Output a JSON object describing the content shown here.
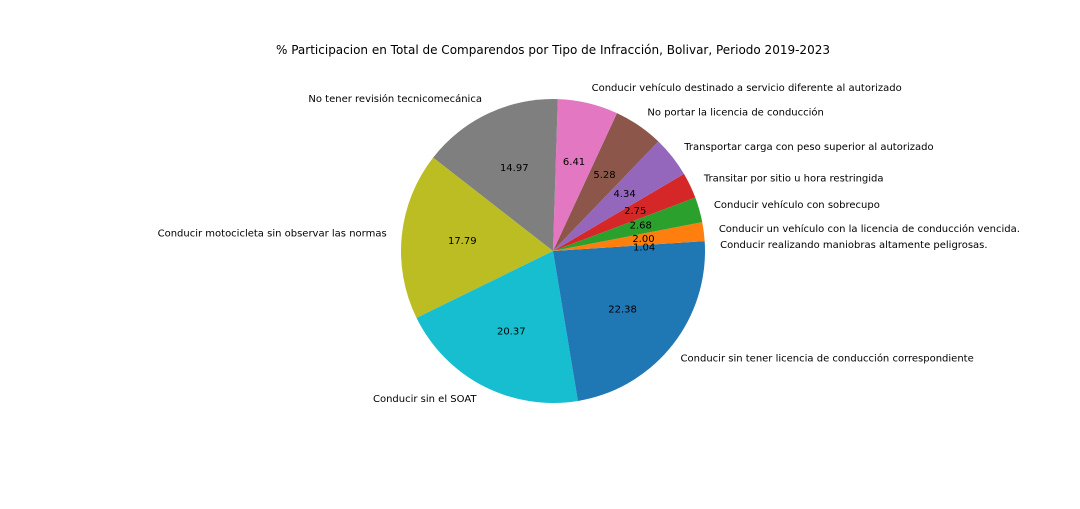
{
  "chart_data": {
    "type": "pie",
    "title": "% Participacion en Total de Comparendos por Tipo de Infracción, Bolivar, Periodo 2019-2023",
    "start_angle_deg": 0,
    "direction": "counterclockwise",
    "slices": [
      {
        "label": "Conducir realizando maniobras altamente peligrosas.",
        "value": 1.04,
        "value_label": "1.04",
        "color": "#1f77b4"
      },
      {
        "label": "Conducir un vehículo con la licencia de conducción vencida.",
        "value": 2.0,
        "value_label": "2.00",
        "color": "#ff7f0e"
      },
      {
        "label": "Conducir vehículo con sobrecupo",
        "value": 2.68,
        "value_label": "2.68",
        "color": "#2ca02c"
      },
      {
        "label": "Transitar por sitio u hora restringida",
        "value": 2.75,
        "value_label": "2.75",
        "color": "#d62728"
      },
      {
        "label": "Transportar carga con peso superior al autorizado",
        "value": 4.34,
        "value_label": "4.34",
        "color": "#9467bd"
      },
      {
        "label": "No portar la licencia de conducción",
        "value": 5.28,
        "value_label": "5.28",
        "color": "#8c564b"
      },
      {
        "label": "Conducir vehículo destinado a servicio diferente al autorizado",
        "value": 6.41,
        "value_label": "6.41",
        "color": "#e377c2"
      },
      {
        "label": "No tener revisión tecnicomecánica",
        "value": 14.97,
        "value_label": "14.97",
        "color": "#7f7f7f"
      },
      {
        "label": "Conducir motocicleta sin observar las normas",
        "value": 17.79,
        "value_label": "17.79",
        "color": "#bcbd22"
      },
      {
        "label": "Conducir sin el SOAT",
        "value": 20.37,
        "value_label": "20.37",
        "color": "#17becf"
      },
      {
        "label": "Conducir sin tener licencia de conducción correspondiente",
        "value": 22.38,
        "value_label": "22.38",
        "color": "#1f77b4"
      }
    ]
  }
}
